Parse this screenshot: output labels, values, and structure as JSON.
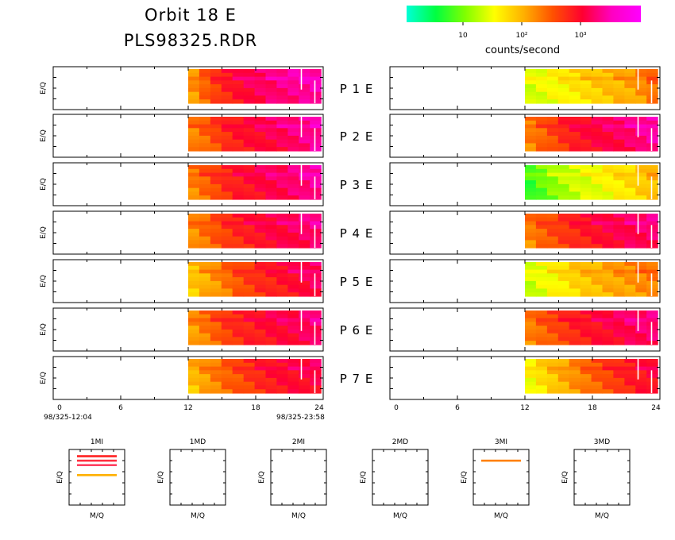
{
  "header": {
    "title_line1": "Orbit  18  E",
    "title_line2": "PLS98325.RDR"
  },
  "colorbar": {
    "label": "counts/second",
    "tick_labels": [
      "10",
      "10²",
      "10³"
    ],
    "stops": [
      "#00ffd8",
      "#00ff40",
      "#80ff00",
      "#ffff00",
      "#ffb000",
      "#ff5000",
      "#ff0030",
      "#ff00c0",
      "#ff00ff"
    ]
  },
  "axes": {
    "ylabel": "E/Q",
    "xticks": [
      "0",
      "6",
      "12",
      "18",
      "24"
    ],
    "time_start": "98/325-12:04",
    "time_end": "98/325-23:58",
    "xlim": [
      0,
      24
    ]
  },
  "small_axes": {
    "ylabel": "E/Q",
    "xlabel": "M/Q"
  },
  "chart_data": {
    "type": "heatmap",
    "description_units": "counts/second vs time (hours) and energy-per-charge",
    "x_range_hours": [
      0,
      24
    ],
    "data_start_hour": 12,
    "data_end_hour": 23.8,
    "panels": [
      {
        "label": "P  1  E",
        "left_level": [
          0.55,
          0.62,
          0.68,
          0.72,
          0.75,
          0.78,
          0.8,
          0.82,
          0.84,
          0.85,
          0.86,
          0.87
        ],
        "right_level": [
          0.35,
          0.37,
          0.39,
          0.41,
          0.43,
          0.45,
          0.47,
          0.49,
          0.51,
          0.53,
          0.56,
          0.6
        ]
      },
      {
        "label": "P  2  E",
        "left_level": [
          0.58,
          0.62,
          0.66,
          0.7,
          0.73,
          0.75,
          0.77,
          0.79,
          0.8,
          0.82,
          0.84,
          0.86
        ],
        "right_level": [
          0.58,
          0.62,
          0.66,
          0.7,
          0.73,
          0.75,
          0.77,
          0.79,
          0.8,
          0.82,
          0.84,
          0.86
        ]
      },
      {
        "label": "P  3  E",
        "left_level": [
          0.58,
          0.62,
          0.66,
          0.7,
          0.73,
          0.75,
          0.77,
          0.79,
          0.8,
          0.82,
          0.84,
          0.86
        ],
        "right_level": [
          0.2,
          0.24,
          0.28,
          0.31,
          0.34,
          0.36,
          0.38,
          0.4,
          0.42,
          0.44,
          0.47,
          0.5
        ]
      },
      {
        "label": "P  4  E",
        "left_level": [
          0.56,
          0.6,
          0.64,
          0.68,
          0.71,
          0.73,
          0.75,
          0.77,
          0.78,
          0.8,
          0.81,
          0.82
        ],
        "right_level": [
          0.58,
          0.62,
          0.65,
          0.68,
          0.71,
          0.73,
          0.75,
          0.77,
          0.78,
          0.8,
          0.81,
          0.82
        ]
      },
      {
        "label": "P  5  E",
        "left_level": [
          0.48,
          0.52,
          0.56,
          0.6,
          0.64,
          0.67,
          0.7,
          0.72,
          0.74,
          0.76,
          0.78,
          0.8
        ],
        "right_level": [
          0.34,
          0.37,
          0.4,
          0.43,
          0.46,
          0.48,
          0.5,
          0.52,
          0.54,
          0.55,
          0.57,
          0.58
        ]
      },
      {
        "label": "P  6  E",
        "left_level": [
          0.55,
          0.59,
          0.63,
          0.67,
          0.7,
          0.72,
          0.74,
          0.76,
          0.77,
          0.78,
          0.8,
          0.82
        ],
        "right_level": [
          0.58,
          0.62,
          0.65,
          0.68,
          0.71,
          0.73,
          0.75,
          0.77,
          0.78,
          0.8,
          0.81,
          0.82
        ]
      },
      {
        "label": "P  7  E",
        "left_level": [
          0.5,
          0.54,
          0.58,
          0.62,
          0.65,
          0.68,
          0.71,
          0.73,
          0.75,
          0.76,
          0.77,
          0.78
        ],
        "right_level": [
          0.4,
          0.44,
          0.48,
          0.52,
          0.56,
          0.6,
          0.63,
          0.66,
          0.69,
          0.72,
          0.74,
          0.76
        ]
      }
    ],
    "small_panels": [
      {
        "title": "1MI",
        "lines": [
          {
            "y": 0.88,
            "color": "#ff2020"
          },
          {
            "y": 0.8,
            "color": "#ff3040"
          },
          {
            "y": 0.72,
            "color": "#ff4060"
          },
          {
            "y": 0.54,
            "color": "#ffb000"
          }
        ]
      },
      {
        "title": "1MD",
        "lines": []
      },
      {
        "title": "2MI",
        "lines": []
      },
      {
        "title": "2MD",
        "lines": []
      },
      {
        "title": "3MI",
        "lines": [
          {
            "y": 0.8,
            "color": "#ff8000"
          }
        ]
      },
      {
        "title": "3MD",
        "lines": []
      }
    ]
  }
}
